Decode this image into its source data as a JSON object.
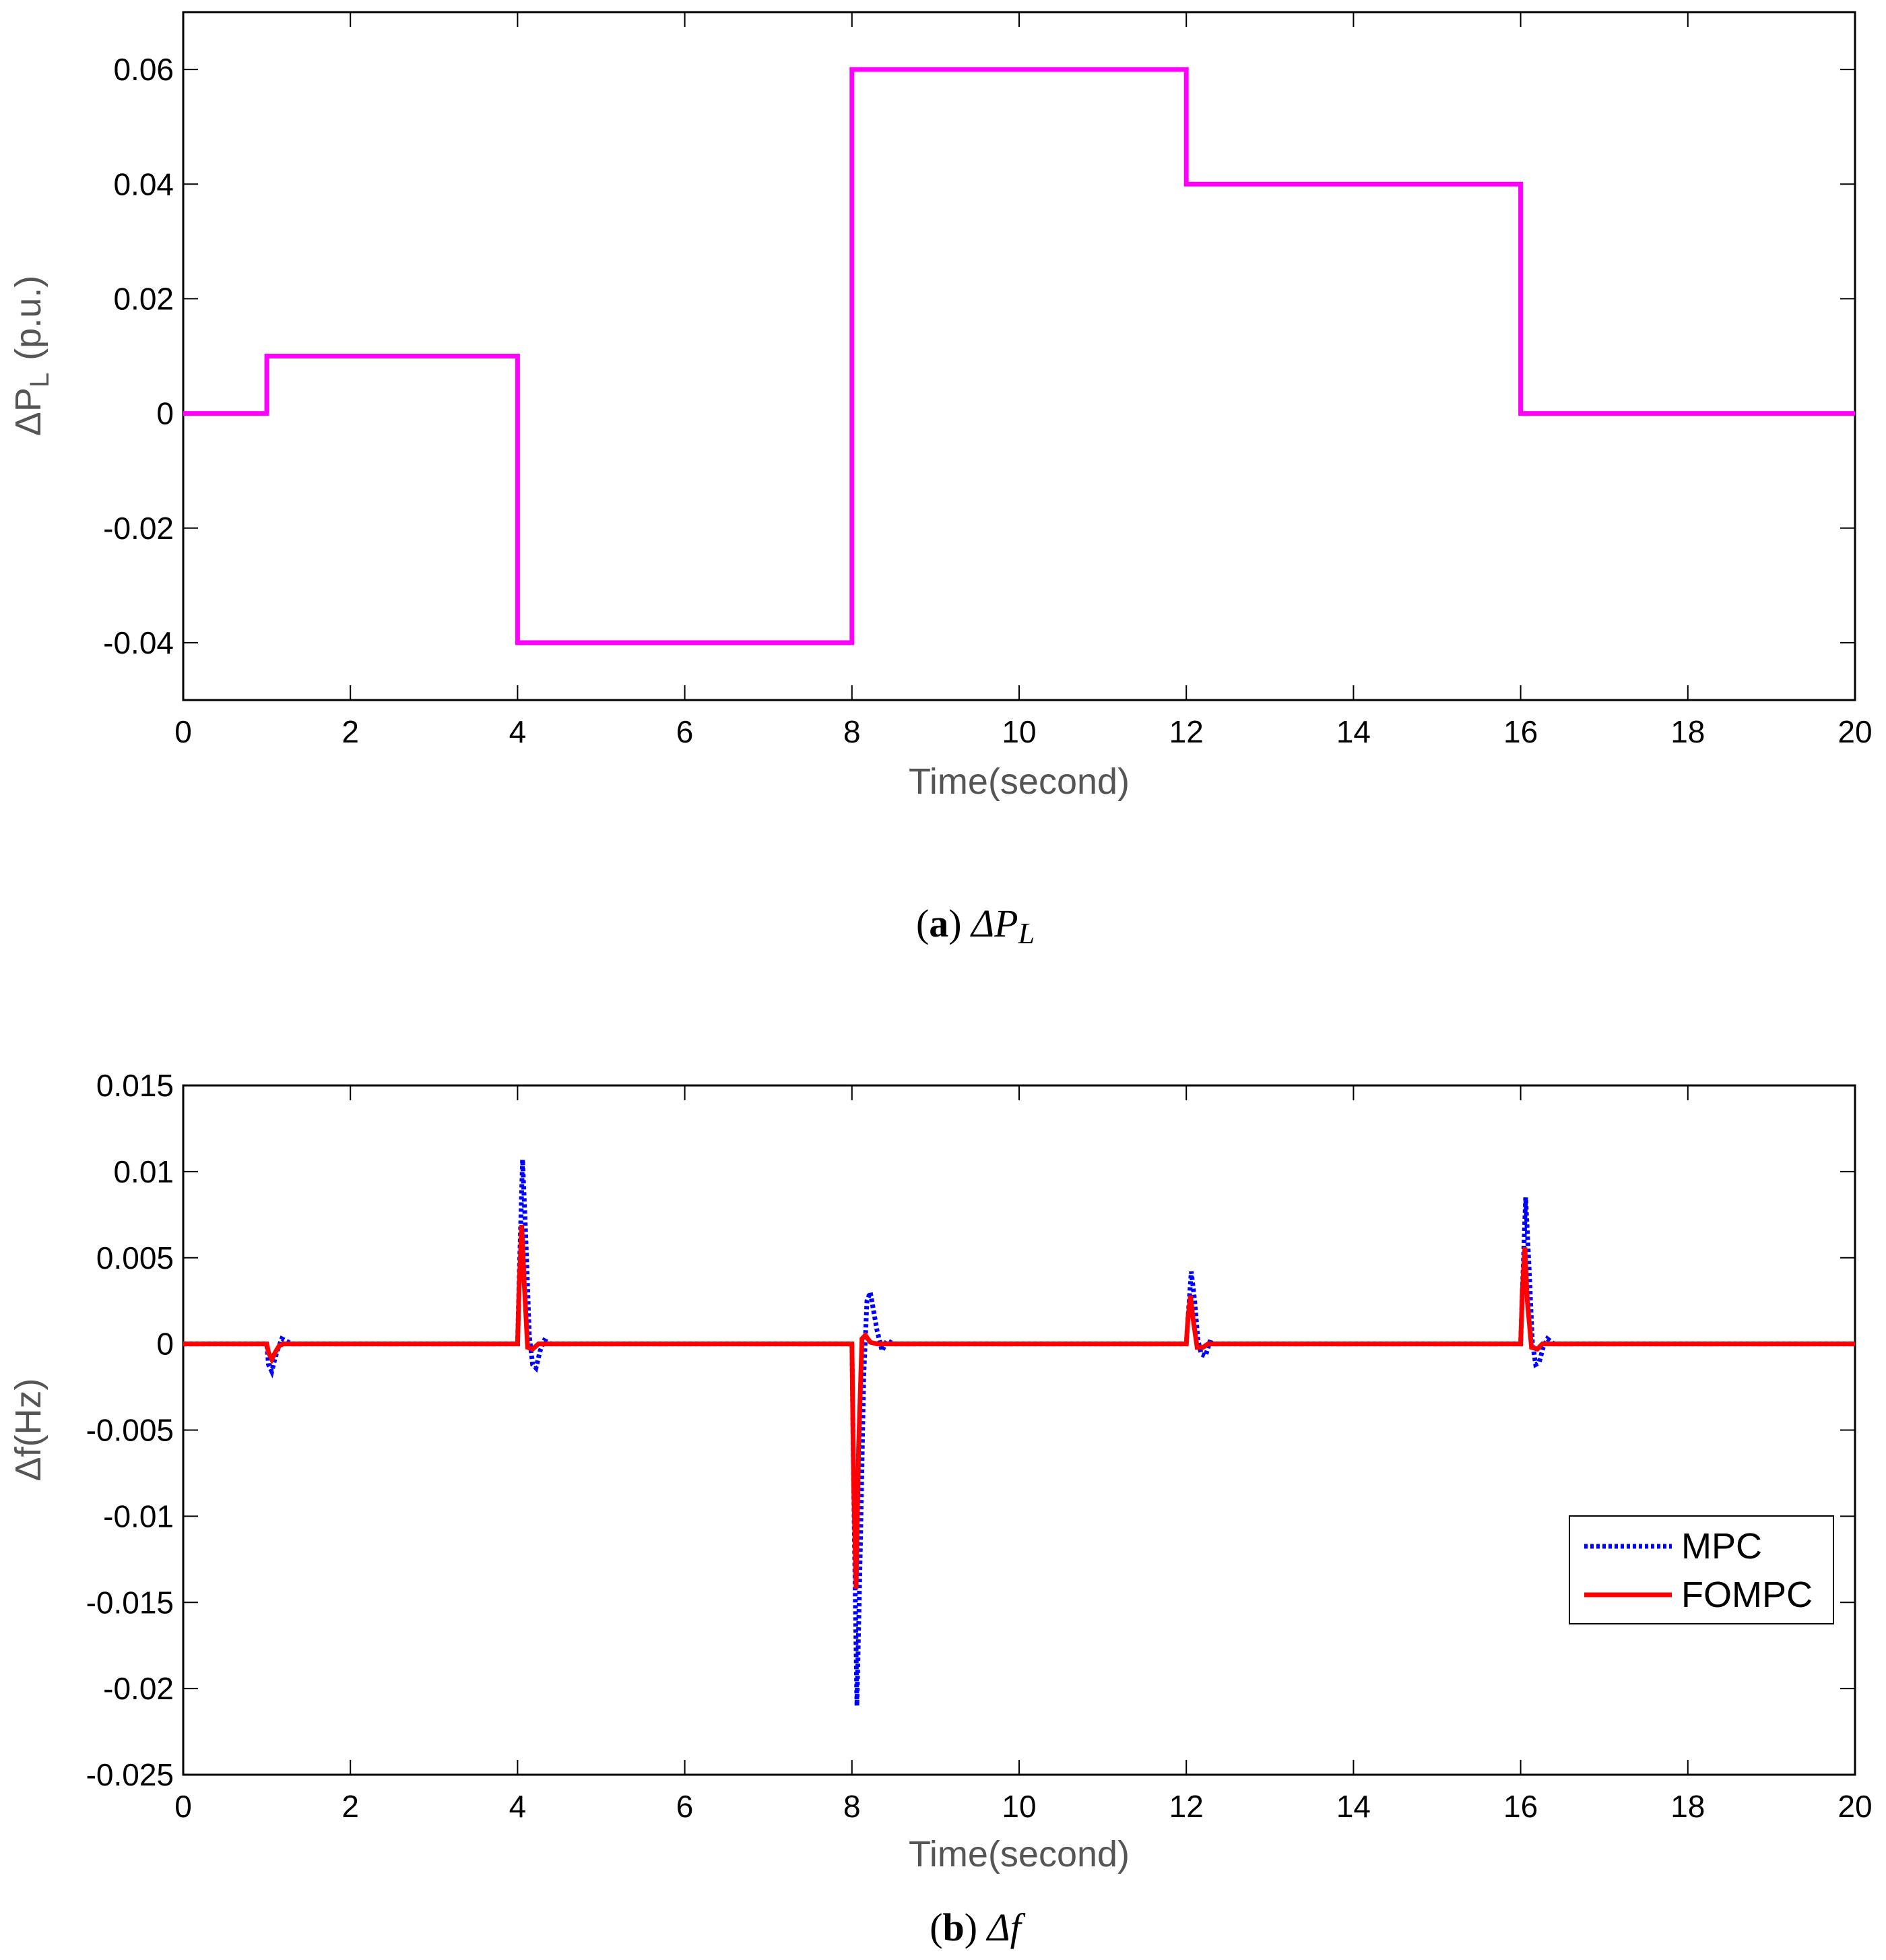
{
  "chart_data": [
    {
      "type": "line",
      "panel_label": "a",
      "caption_symbol": "ΔP",
      "caption_subscript": "L",
      "xlabel": "Time(second)",
      "ylabel_main": "ΔP",
      "ylabel_sub": "L",
      "ylabel_unit": "(p.u.)",
      "xlim": [
        0,
        20
      ],
      "ylim": [
        -0.05,
        0.07
      ],
      "x_ticks": [
        0,
        2,
        4,
        6,
        8,
        10,
        12,
        14,
        16,
        18,
        20
      ],
      "x_tick_labels": [
        "0",
        "2",
        "4",
        "6",
        "8",
        "10",
        "12",
        "14",
        "16",
        "18",
        "20"
      ],
      "y_ticks": [
        -0.04,
        -0.02,
        0,
        0.02,
        0.04,
        0.06
      ],
      "y_tick_labels": [
        "-0.04",
        "-0.02",
        "0",
        "0.02",
        "0.04",
        "0.06"
      ],
      "grid": false,
      "series": [
        {
          "name": "ΔPL",
          "color": "#ff00ff",
          "style": "solid",
          "x": [
            0,
            1,
            1,
            4,
            4,
            8,
            8,
            12,
            12,
            16,
            16,
            20
          ],
          "y": [
            0,
            0,
            0.01,
            0.01,
            -0.04,
            -0.04,
            0.06,
            0.06,
            0.04,
            0.04,
            0,
            0
          ]
        }
      ]
    },
    {
      "type": "line",
      "panel_label": "b",
      "caption_symbol": "Δf",
      "xlabel": "Time(second)",
      "ylabel": "Δf(Hz)",
      "xlim": [
        0,
        20
      ],
      "ylim": [
        -0.025,
        0.015
      ],
      "x_ticks": [
        0,
        2,
        4,
        6,
        8,
        10,
        12,
        14,
        16,
        18,
        20
      ],
      "x_tick_labels": [
        "0",
        "2",
        "4",
        "6",
        "8",
        "10",
        "12",
        "14",
        "16",
        "18",
        "20"
      ],
      "y_ticks": [
        -0.025,
        -0.02,
        -0.015,
        -0.01,
        -0.005,
        0,
        0.005,
        0.01,
        0.015
      ],
      "y_tick_labels": [
        "-0.025",
        "-0.02",
        "-0.015",
        "-0.01",
        "-0.005",
        "0",
        "0.005",
        "0.01",
        "0.015"
      ],
      "grid": false,
      "legend_position": "lower-right",
      "series": [
        {
          "name": "MPC",
          "color": "#0000ff",
          "style": "dotted",
          "x": [
            0,
            1.0,
            1.02,
            1.06,
            1.1,
            1.14,
            1.18,
            1.22,
            1.3,
            4.0,
            4.02,
            4.06,
            4.1,
            4.14,
            4.18,
            4.22,
            4.27,
            4.32,
            4.4,
            8.0,
            8.02,
            8.06,
            8.1,
            8.14,
            8.18,
            8.22,
            8.3,
            8.36,
            8.42,
            8.5,
            12.0,
            12.02,
            12.06,
            12.1,
            12.14,
            12.18,
            12.23,
            12.28,
            12.35,
            16.0,
            16.02,
            16.06,
            16.1,
            16.14,
            16.18,
            16.22,
            16.27,
            16.32,
            16.4,
            20
          ],
          "y": [
            0,
            0,
            -0.0012,
            -0.0016,
            -0.0008,
            -0.0002,
            0.0003,
            0.0002,
            0,
            0,
            0.004,
            0.0107,
            0.006,
            0.0005,
            -0.0012,
            -0.0014,
            -0.0004,
            0.0002,
            0,
            0,
            -0.008,
            -0.021,
            -0.012,
            -0.002,
            0.0025,
            0.003,
            0.0008,
            -0.0004,
            0.0002,
            0,
            0,
            0.0015,
            0.0042,
            0.0025,
            0.0002,
            -0.0006,
            -0.0007,
            0.0001,
            0,
            0,
            0.003,
            0.0085,
            0.0045,
            0.0001,
            -0.0012,
            -0.0011,
            -0.0002,
            0.0003,
            0,
            0
          ]
        },
        {
          "name": "FOMPC",
          "color": "#ff0000",
          "style": "solid",
          "x": [
            0,
            1.0,
            1.02,
            1.06,
            1.1,
            1.15,
            1.2,
            4.0,
            4.02,
            4.05,
            4.08,
            4.12,
            4.18,
            4.25,
            4.3,
            8.0,
            8.02,
            8.05,
            8.08,
            8.12,
            8.16,
            8.22,
            8.3,
            12.0,
            12.02,
            12.05,
            12.08,
            12.13,
            12.2,
            12.26,
            16.0,
            16.02,
            16.05,
            16.08,
            16.13,
            16.2,
            16.26,
            20
          ],
          "y": [
            0,
            0,
            -0.0005,
            -0.0009,
            -0.0005,
            -0.0001,
            0,
            0,
            0.0035,
            0.0069,
            0.0035,
            -0.0002,
            -0.0003,
            0,
            0,
            0,
            -0.008,
            -0.0142,
            -0.006,
            0.0003,
            0.0005,
            0.0001,
            0,
            0,
            0.0015,
            0.0028,
            0.0015,
            -0.0002,
            -0.0002,
            0,
            0,
            0.003,
            0.0056,
            0.0025,
            -0.0002,
            -0.0003,
            0,
            0
          ]
        }
      ]
    }
  ]
}
